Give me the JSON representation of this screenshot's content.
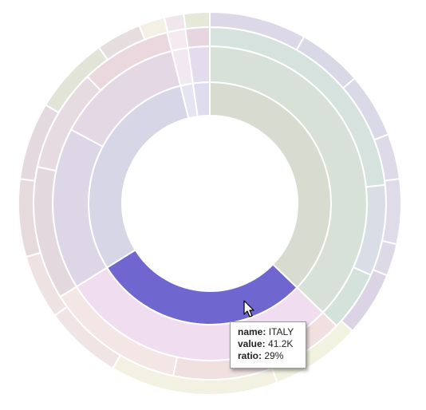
{
  "tooltip": {
    "name_label": "name:",
    "name_value": "ITALY",
    "value_label": "value:",
    "value_value": "41.2K",
    "ratio_label": "ratio:",
    "ratio_value": "29%"
  },
  "chart_data": {
    "type": "sunburst",
    "highlighted": "ITALY",
    "rings": [
      [
        {
          "color": "#d8dbcf",
          "span": 134
        },
        {
          "color": "#7066cf",
          "span": 104,
          "highlight": true
        },
        {
          "color": "#d6d6e6",
          "span": 108
        },
        {
          "color": "#e4e4f2",
          "span": 6
        },
        {
          "color": "#e0dcef",
          "span": 8
        }
      ],
      [
        {
          "color": "#d7e1d7",
          "span": 134
        },
        {
          "color": "#f0ddef",
          "span": 104
        },
        {
          "color": "#dcd6e6",
          "span": 60
        },
        {
          "color": "#e3d8e3",
          "span": 48
        },
        {
          "color": "#f2e8f0",
          "span": 6
        },
        {
          "color": "#e2dcec",
          "span": 8
        }
      ],
      [
        {
          "color": "#d6e2de",
          "span": 84
        },
        {
          "color": "#d8dde6",
          "span": 30
        },
        {
          "color": "#d4e2dc",
          "span": 20
        },
        {
          "color": "#f0e0e0",
          "span": 58
        },
        {
          "color": "#f5e6e6",
          "span": 46
        },
        {
          "color": "#e3d8dd",
          "span": 44
        },
        {
          "color": "#e5dbe0",
          "span": 34
        },
        {
          "color": "#ead8de",
          "span": 30
        },
        {
          "color": "#f4eaf0",
          "span": 6
        },
        {
          "color": "#e5d6e0",
          "span": 8
        }
      ],
      [
        {
          "color": "#ddd8e8",
          "span": 30
        },
        {
          "color": "#d8d8e6",
          "span": 20
        },
        {
          "color": "#d9d9e7",
          "span": 20
        },
        {
          "color": "#dedae8",
          "span": 14
        },
        {
          "color": "#e0dbe8",
          "span": 20
        },
        {
          "color": "#ded9e7",
          "span": 10
        },
        {
          "color": "#dcd4e4",
          "span": 20
        },
        {
          "color": "#f2f2e0",
          "span": 28
        },
        {
          "color": "#f3f2e2",
          "span": 52
        },
        {
          "color": "#f0e4e4",
          "span": 24
        },
        {
          "color": "#eee2e2",
          "span": 20
        },
        {
          "color": "#e6dadc",
          "span": 24
        },
        {
          "color": "#e4d9de",
          "span": 24
        },
        {
          "color": "#e3e4d8",
          "span": 24
        },
        {
          "color": "#e6dddf",
          "span": 14
        },
        {
          "color": "#f4f0e4",
          "span": 8
        },
        {
          "color": "#f0e6ee",
          "span": 6
        },
        {
          "color": "#e6e8d8",
          "span": 8
        }
      ]
    ]
  }
}
